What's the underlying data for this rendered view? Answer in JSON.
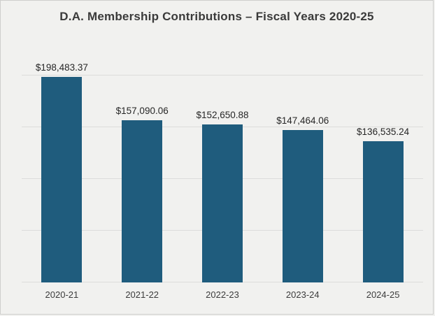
{
  "page": {
    "background": "#f1f1ef",
    "border_color": "#cfcfcd"
  },
  "chart_data": {
    "type": "bar",
    "title": "D.A. Membership Contributions – Fiscal Years 2020-25",
    "categories": [
      "2020-21",
      "2021-22",
      "2022-23",
      "2023-24",
      "2024-25"
    ],
    "values": [
      198483.37,
      157090.06,
      152650.88,
      147464.06,
      136535.24
    ],
    "value_labels": [
      "$198,483.37",
      "$157,090.06",
      "$152,650.88",
      "$147,464.06",
      "$136,535.24"
    ],
    "xlabel": "",
    "ylabel": "",
    "ylim": [
      0,
      200000
    ],
    "grid_step": 50000,
    "grid": true,
    "legend": false,
    "bar_color": "#1f5c7d",
    "gridline_color": "#dcdcdb",
    "label_color": "#262626",
    "axis_label_color": "#3c3c3c"
  }
}
